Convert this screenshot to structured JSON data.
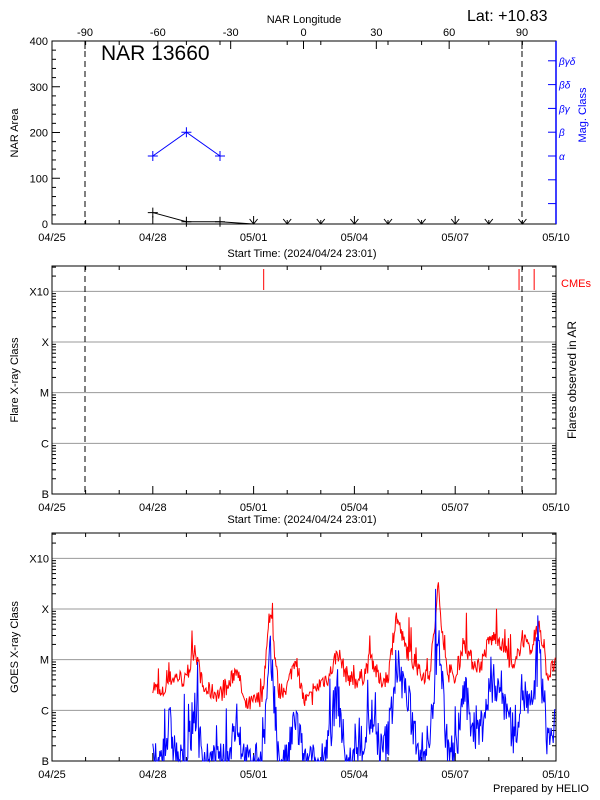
{
  "header": {
    "lat_label": "Lat: +10.83"
  },
  "chart_data": [
    {
      "type": "line",
      "title": "NAR 13660",
      "xlabel": "Start Time: (2024/04/24 23:01)",
      "ylabel": "NAR Area",
      "y2label": "Mag. Class",
      "top_axis_label": "NAR Longitude",
      "xlim": [
        "04/25",
        "05/10"
      ],
      "x_tick_labels": [
        "04/25",
        "04/28",
        "05/01",
        "05/04",
        "05/07",
        "05/10"
      ],
      "ylim": [
        0,
        400
      ],
      "y_tick_labels": [
        "0",
        "100",
        "200",
        "300",
        "400"
      ],
      "top_tick_labels": [
        "-90",
        "-60",
        "-30",
        "0",
        "30",
        "60",
        "90"
      ],
      "mag_class_labels": [
        "α",
        "β",
        "βγ",
        "βδ",
        "βγδ"
      ],
      "limb_crossings_longitude": [
        -90,
        90
      ],
      "series": [
        {
          "color": "#000000",
          "x_day": [
            3,
            4,
            5,
            6,
            7,
            8,
            9,
            10,
            11,
            12,
            13,
            14
          ],
          "values": [
            25,
            5,
            5,
            0,
            0,
            0,
            0,
            0,
            0,
            0,
            0,
            0
          ]
        },
        {
          "color": "#0000ff",
          "x_day": [
            3,
            4,
            5
          ],
          "values": [
            "α",
            "β",
            "α"
          ]
        }
      ]
    },
    {
      "type": "scatter",
      "xlabel": "Start Time: (2024/04/24 23:01)",
      "ylabel": "Flare X-ray Class",
      "y2label": "Flares observed in AR",
      "x_tick_labels": [
        "04/25",
        "04/28",
        "05/01",
        "05/04",
        "05/07",
        "05/10"
      ],
      "y_tick_labels": [
        "B",
        "C",
        "M",
        "X",
        "X10"
      ],
      "grid": true,
      "cme_label": "CMEs",
      "cme_color": "#ff0000",
      "cme_times_day": [
        6.3,
        13.9,
        14.35
      ],
      "flares": []
    },
    {
      "type": "line",
      "ylabel": "GOES X-ray Class",
      "x_tick_labels": [
        "04/25",
        "04/28",
        "05/01",
        "05/04",
        "05/07",
        "05/10"
      ],
      "y_tick_labels": [
        "B",
        "C",
        "M",
        "X",
        "X10"
      ],
      "ylim_log_flux": [
        -7,
        -2.5
      ],
      "grid": true,
      "x_start": "2024-04-28 00:00",
      "x_step_hours": 6,
      "series": [
        {
          "color": "#ff0000",
          "log_flux": [
            -5.45,
            -5.7,
            -5.35,
            -5.3,
            -5.4,
            -4.7,
            -5.55,
            -5.6,
            -5.65,
            -5.5,
            -5.1,
            -5.9,
            -5.8,
            -5.7,
            -4.0,
            -5.6,
            -5.5,
            -4.9,
            -5.8,
            -5.7,
            -5.4,
            -5.3,
            -4.8,
            -5.25,
            -5.4,
            -5.3,
            -4.9,
            -5.4,
            -5.3,
            -4.1,
            -4.7,
            -5.0,
            -5.3,
            -5.2,
            -3.6,
            -5.2,
            -5.4,
            -4.6,
            -5.0,
            -5.1,
            -4.6,
            -4.5,
            -4.8,
            -5.2,
            -4.5,
            -4.9,
            -4.2,
            -5.3,
            -5.0
          ]
        },
        {
          "color": "#0000ff",
          "log_flux": [
            -7,
            -7,
            -6.2,
            -7,
            -7,
            -5.8,
            -7,
            -7,
            -7,
            -7,
            -6.0,
            -7,
            -7,
            -7,
            -4.8,
            -7,
            -7,
            -6.0,
            -7,
            -7,
            -7,
            -6.4,
            -5.5,
            -7,
            -7,
            -6.6,
            -6.0,
            -6.8,
            -6.5,
            -5.0,
            -5.5,
            -6.2,
            -6.8,
            -6.5,
            -4.3,
            -6.6,
            -6.9,
            -5.5,
            -6.2,
            -6.3,
            -5.6,
            -5.3,
            -5.8,
            -6.4,
            -5.5,
            -6.0,
            -4.8,
            -6.5,
            -6.2
          ]
        }
      ]
    }
  ],
  "footer": {
    "credit": "Prepared by HELIO"
  }
}
